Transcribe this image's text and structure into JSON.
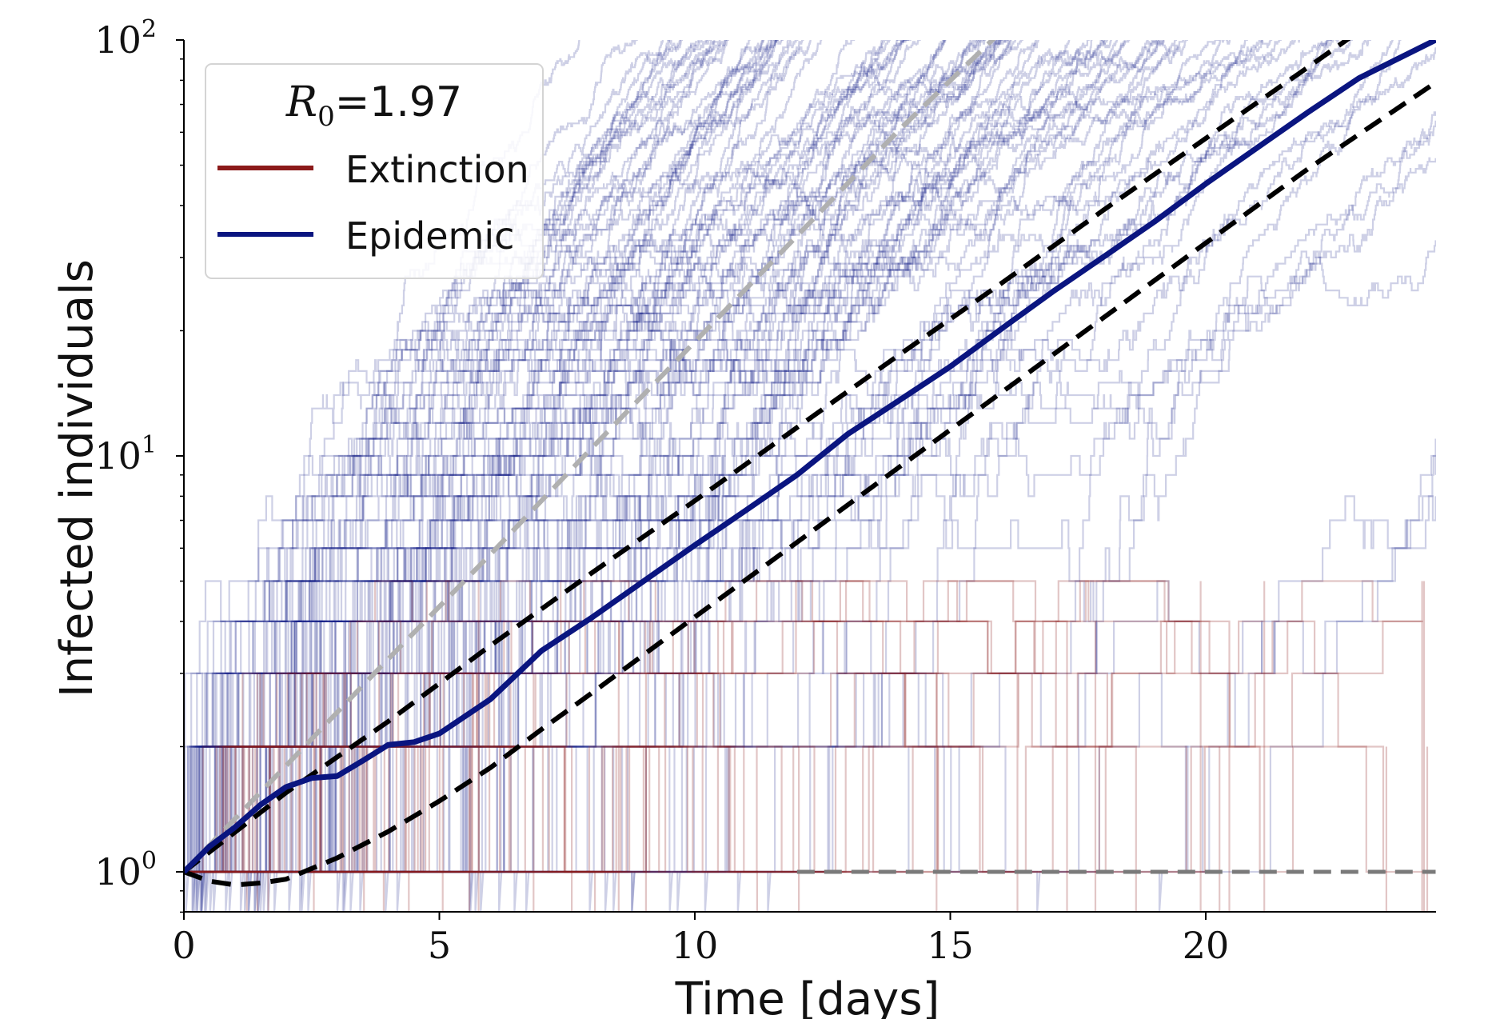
{
  "chart_data": {
    "type": "line",
    "yscale": "log",
    "xlabel": "Time [days]",
    "ylabel": "Infected individuals",
    "xlim": [
      0,
      24.5
    ],
    "ylim": [
      0.8,
      100
    ],
    "x_ticks": [
      {
        "value": 0,
        "label": "0"
      },
      {
        "value": 5,
        "label": "5"
      },
      {
        "value": 10,
        "label": "10"
      },
      {
        "value": 15,
        "label": "15"
      },
      {
        "value": 20,
        "label": "20"
      }
    ],
    "y_ticks": [
      {
        "value": 1,
        "base": "10",
        "exp": "0"
      },
      {
        "value": 10,
        "base": "10",
        "exp": "1"
      },
      {
        "value": 100,
        "base": "10",
        "exp": "2"
      }
    ],
    "legend": {
      "title_symbol": "R",
      "title_subscript": "0",
      "title_value": "=1.97",
      "placement": "top-left",
      "entries": [
        {
          "label": "Extinction",
          "color": "#8b1a1a"
        },
        {
          "label": "Epidemic",
          "color": "#0a1580"
        }
      ]
    },
    "colors": {
      "epidemic": "#0a1580",
      "extinction": "#8b1a1a",
      "gray_dashed": "#b0b0b0",
      "black_dashed": "#000000",
      "baseline_dashed": "#7a7a7a"
    },
    "mean_epidemic": {
      "x": [
        0,
        0.5,
        1,
        1.5,
        2,
        2.5,
        3,
        3.5,
        4,
        4.5,
        5,
        6,
        7,
        8,
        9,
        10,
        11,
        12,
        13,
        14,
        15,
        16,
        17,
        18,
        19,
        20,
        21,
        22,
        23,
        24.5
      ],
      "y": [
        1,
        1.15,
        1.28,
        1.45,
        1.6,
        1.68,
        1.7,
        1.85,
        2.02,
        2.05,
        2.15,
        2.6,
        3.4,
        4.1,
        5.0,
        6.1,
        7.4,
        9.0,
        11.3,
        13.6,
        16.4,
        20.2,
        24.8,
        30.1,
        36.6,
        45.1,
        55,
        67,
        81,
        100
      ]
    },
    "upper_dashed": {
      "x": [
        0,
        2,
        4,
        6,
        8,
        10,
        12,
        14,
        16,
        18,
        20,
        22,
        23
      ],
      "y": [
        1,
        1.55,
        2.3,
        3.5,
        5.25,
        7.8,
        11.7,
        17.5,
        26,
        39,
        58,
        86,
        105
      ]
    },
    "lower_dashed": {
      "x": [
        0,
        0.5,
        1,
        1.5,
        2,
        3,
        4,
        5,
        6,
        7,
        8,
        10,
        12,
        14,
        16,
        18,
        20,
        22,
        24.5
      ],
      "y": [
        1,
        0.95,
        0.93,
        0.94,
        0.96,
        1.08,
        1.25,
        1.48,
        1.78,
        2.2,
        2.7,
        4.1,
        6.2,
        9.4,
        14.2,
        21.5,
        32.5,
        49,
        79
      ]
    },
    "gray_dashed": {
      "x": [
        0,
        2,
        4,
        6,
        8,
        10,
        12,
        14,
        16
      ],
      "y": [
        1,
        1.8,
        3.25,
        5.8,
        10.5,
        18.8,
        33.8,
        60.8,
        105
      ]
    },
    "baseline_dashed": {
      "x": [
        12,
        24.5
      ],
      "y": [
        1,
        1
      ]
    }
  }
}
